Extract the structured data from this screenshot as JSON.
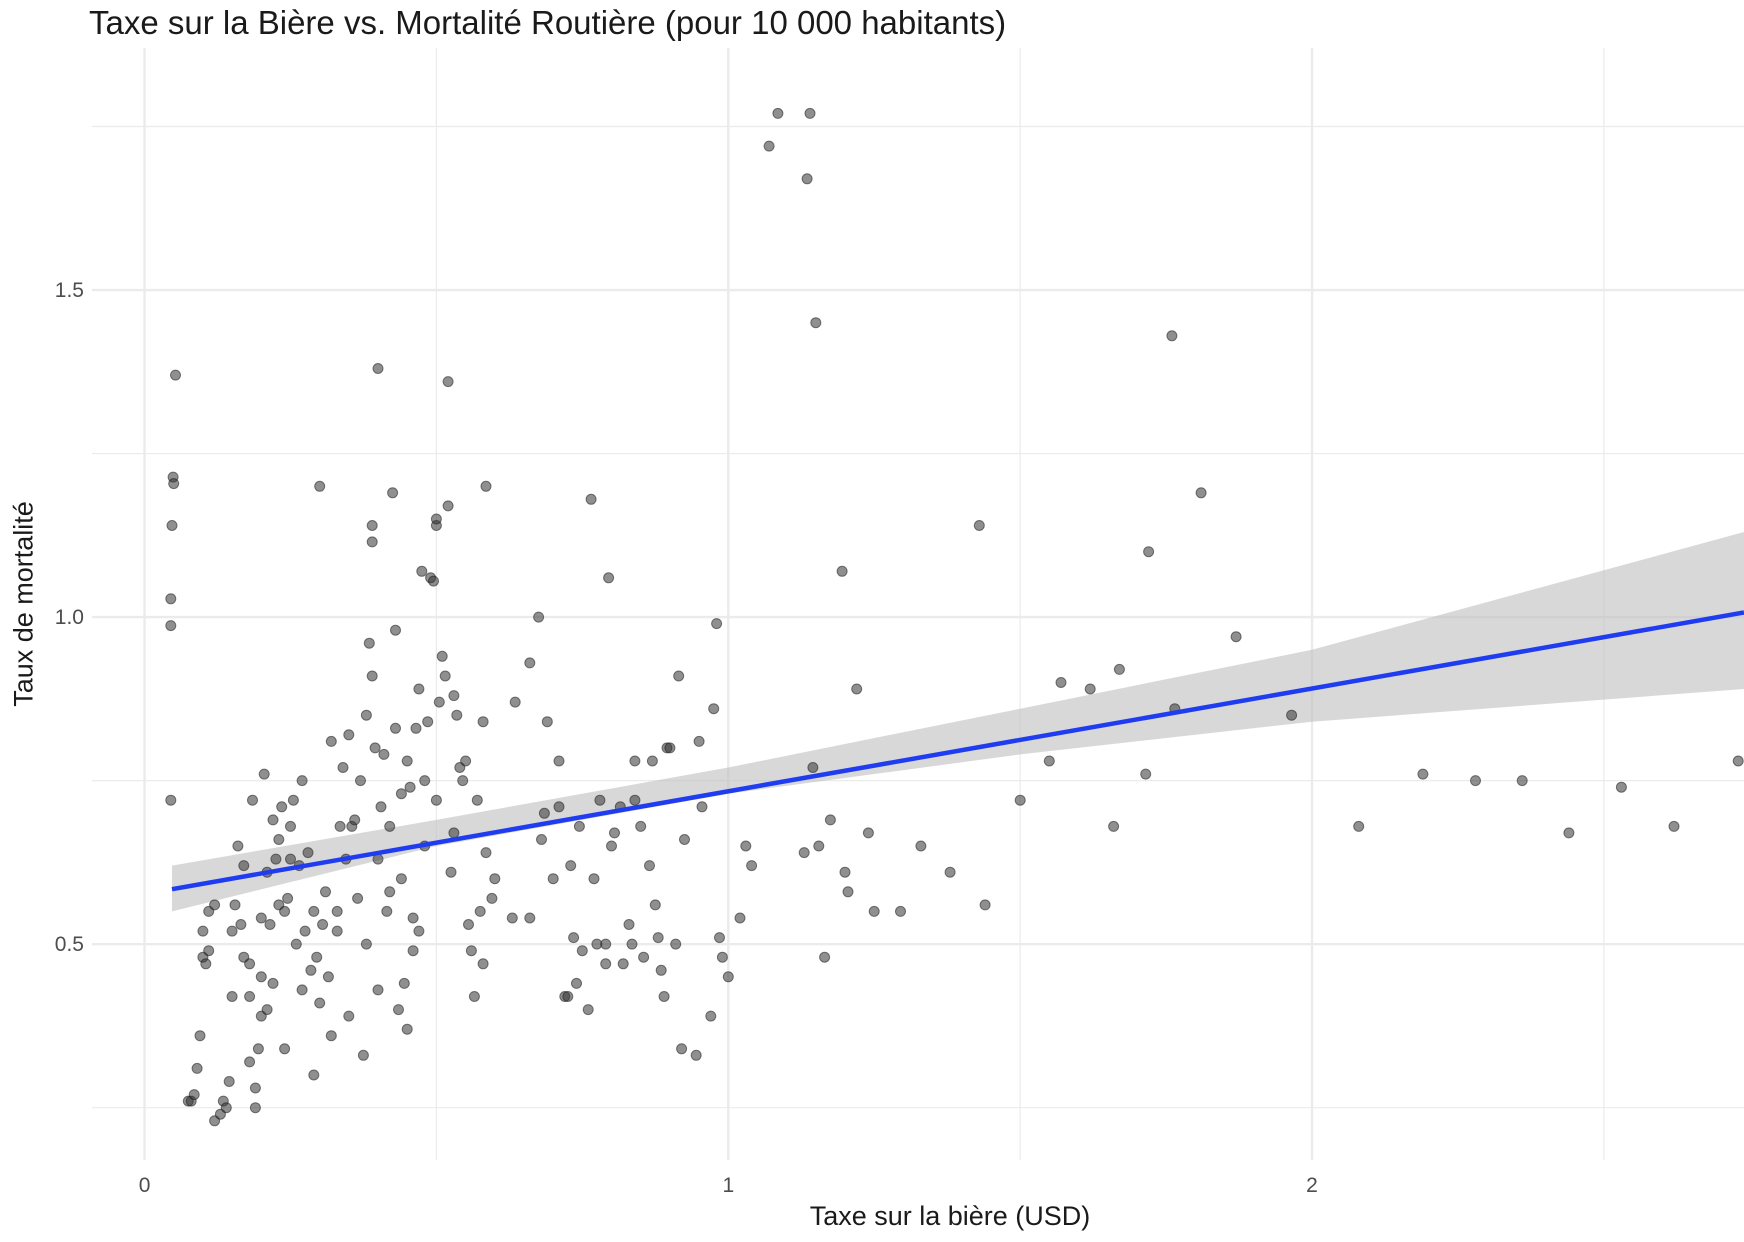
{
  "chart_data": {
    "type": "scatter",
    "title": "Taxe sur la Bière vs. Mortalité Routière (pour 10 000 habitants)",
    "xlabel": "Taxe sur la bière (USD)",
    "ylabel": "Taux de mortalité",
    "xlim": [
      -0.09,
      2.74
    ],
    "ylim": [
      0.17,
      1.87
    ],
    "x_ticks": [
      0,
      1,
      2
    ],
    "x_tick_labels": [
      "0",
      "1",
      "2"
    ],
    "y_ticks": [
      0.5,
      1.0,
      1.5
    ],
    "y_tick_labels": [
      "0.5",
      "1.0",
      "1.5"
    ],
    "grid": true,
    "colors": {
      "points": "#333333",
      "fit_line": "#1f3cf0",
      "confidence_band": "#bebebe",
      "grid": "#ebebeb"
    },
    "regression": {
      "x": [
        0.047,
        2.74
      ],
      "y": [
        0.584,
        1.007
      ]
    },
    "confidence_band": {
      "x": [
        0.047,
        0.5,
        1.0,
        1.5,
        2.0,
        2.74
      ],
      "lower": [
        0.55,
        0.65,
        0.73,
        0.79,
        0.84,
        0.89
      ],
      "upper": [
        0.62,
        0.69,
        0.77,
        0.86,
        0.95,
        1.13
      ]
    },
    "points": [
      {
        "x": 0.045,
        "y": 0.987
      },
      {
        "x": 0.045,
        "y": 1.028
      },
      {
        "x": 0.047,
        "y": 1.14
      },
      {
        "x": 0.049,
        "y": 1.214
      },
      {
        "x": 0.05,
        "y": 1.204
      },
      {
        "x": 0.053,
        "y": 1.37
      },
      {
        "x": 0.045,
        "y": 0.72
      },
      {
        "x": 0.075,
        "y": 0.26
      },
      {
        "x": 0.08,
        "y": 0.26
      },
      {
        "x": 0.085,
        "y": 0.27
      },
      {
        "x": 0.09,
        "y": 0.31
      },
      {
        "x": 0.095,
        "y": 0.36
      },
      {
        "x": 0.1,
        "y": 0.48
      },
      {
        "x": 0.1,
        "y": 0.52
      },
      {
        "x": 0.105,
        "y": 0.47
      },
      {
        "x": 0.11,
        "y": 0.49
      },
      {
        "x": 0.11,
        "y": 0.55
      },
      {
        "x": 0.12,
        "y": 0.56
      },
      {
        "x": 0.12,
        "y": 0.23
      },
      {
        "x": 0.13,
        "y": 0.24
      },
      {
        "x": 0.135,
        "y": 0.26
      },
      {
        "x": 0.14,
        "y": 0.25
      },
      {
        "x": 0.145,
        "y": 0.29
      },
      {
        "x": 0.15,
        "y": 0.42
      },
      {
        "x": 0.15,
        "y": 0.52
      },
      {
        "x": 0.155,
        "y": 0.56
      },
      {
        "x": 0.16,
        "y": 0.65
      },
      {
        "x": 0.165,
        "y": 0.53
      },
      {
        "x": 0.17,
        "y": 0.48
      },
      {
        "x": 0.17,
        "y": 0.62
      },
      {
        "x": 0.18,
        "y": 0.42
      },
      {
        "x": 0.18,
        "y": 0.47
      },
      {
        "x": 0.18,
        "y": 0.32
      },
      {
        "x": 0.185,
        "y": 0.72
      },
      {
        "x": 0.19,
        "y": 0.25
      },
      {
        "x": 0.19,
        "y": 0.28
      },
      {
        "x": 0.195,
        "y": 0.34
      },
      {
        "x": 0.2,
        "y": 0.39
      },
      {
        "x": 0.2,
        "y": 0.45
      },
      {
        "x": 0.2,
        "y": 0.54
      },
      {
        "x": 0.205,
        "y": 0.76
      },
      {
        "x": 0.21,
        "y": 0.61
      },
      {
        "x": 0.21,
        "y": 0.4
      },
      {
        "x": 0.215,
        "y": 0.53
      },
      {
        "x": 0.22,
        "y": 0.44
      },
      {
        "x": 0.22,
        "y": 0.69
      },
      {
        "x": 0.225,
        "y": 0.63
      },
      {
        "x": 0.23,
        "y": 0.56
      },
      {
        "x": 0.23,
        "y": 0.66
      },
      {
        "x": 0.235,
        "y": 0.71
      },
      {
        "x": 0.24,
        "y": 0.55
      },
      {
        "x": 0.24,
        "y": 0.34
      },
      {
        "x": 0.245,
        "y": 0.57
      },
      {
        "x": 0.25,
        "y": 0.63
      },
      {
        "x": 0.25,
        "y": 0.68
      },
      {
        "x": 0.255,
        "y": 0.72
      },
      {
        "x": 0.26,
        "y": 0.5
      },
      {
        "x": 0.265,
        "y": 0.62
      },
      {
        "x": 0.27,
        "y": 0.43
      },
      {
        "x": 0.27,
        "y": 0.75
      },
      {
        "x": 0.275,
        "y": 0.52
      },
      {
        "x": 0.28,
        "y": 0.64
      },
      {
        "x": 0.285,
        "y": 0.46
      },
      {
        "x": 0.29,
        "y": 0.55
      },
      {
        "x": 0.29,
        "y": 0.3
      },
      {
        "x": 0.295,
        "y": 0.48
      },
      {
        "x": 0.3,
        "y": 0.41
      },
      {
        "x": 0.3,
        "y": 1.2
      },
      {
        "x": 0.305,
        "y": 0.53
      },
      {
        "x": 0.31,
        "y": 0.58
      },
      {
        "x": 0.315,
        "y": 0.45
      },
      {
        "x": 0.32,
        "y": 0.36
      },
      {
        "x": 0.32,
        "y": 0.81
      },
      {
        "x": 0.33,
        "y": 0.52
      },
      {
        "x": 0.33,
        "y": 0.55
      },
      {
        "x": 0.335,
        "y": 0.68
      },
      {
        "x": 0.34,
        "y": 0.77
      },
      {
        "x": 0.345,
        "y": 0.63
      },
      {
        "x": 0.35,
        "y": 0.82
      },
      {
        "x": 0.35,
        "y": 0.39
      },
      {
        "x": 0.355,
        "y": 0.68
      },
      {
        "x": 0.36,
        "y": 0.69
      },
      {
        "x": 0.365,
        "y": 0.57
      },
      {
        "x": 0.37,
        "y": 0.75
      },
      {
        "x": 0.375,
        "y": 0.33
      },
      {
        "x": 0.38,
        "y": 0.5
      },
      {
        "x": 0.38,
        "y": 0.85
      },
      {
        "x": 0.385,
        "y": 0.96
      },
      {
        "x": 0.39,
        "y": 0.91
      },
      {
        "x": 0.39,
        "y": 1.14
      },
      {
        "x": 0.39,
        "y": 1.115
      },
      {
        "x": 0.395,
        "y": 0.8
      },
      {
        "x": 0.4,
        "y": 0.63
      },
      {
        "x": 0.4,
        "y": 0.43
      },
      {
        "x": 0.4,
        "y": 1.38
      },
      {
        "x": 0.405,
        "y": 0.71
      },
      {
        "x": 0.41,
        "y": 0.79
      },
      {
        "x": 0.415,
        "y": 0.55
      },
      {
        "x": 0.42,
        "y": 0.58
      },
      {
        "x": 0.42,
        "y": 0.68
      },
      {
        "x": 0.425,
        "y": 1.19
      },
      {
        "x": 0.43,
        "y": 0.83
      },
      {
        "x": 0.43,
        "y": 0.98
      },
      {
        "x": 0.435,
        "y": 0.4
      },
      {
        "x": 0.44,
        "y": 0.73
      },
      {
        "x": 0.44,
        "y": 0.6
      },
      {
        "x": 0.445,
        "y": 0.44
      },
      {
        "x": 0.45,
        "y": 0.78
      },
      {
        "x": 0.45,
        "y": 0.37
      },
      {
        "x": 0.455,
        "y": 0.74
      },
      {
        "x": 0.46,
        "y": 0.54
      },
      {
        "x": 0.46,
        "y": 0.49
      },
      {
        "x": 0.465,
        "y": 0.83
      },
      {
        "x": 0.47,
        "y": 0.52
      },
      {
        "x": 0.47,
        "y": 0.89
      },
      {
        "x": 0.475,
        "y": 1.07
      },
      {
        "x": 0.48,
        "y": 0.65
      },
      {
        "x": 0.48,
        "y": 0.75
      },
      {
        "x": 0.485,
        "y": 0.84
      },
      {
        "x": 0.49,
        "y": 1.06
      },
      {
        "x": 0.495,
        "y": 1.055
      },
      {
        "x": 0.5,
        "y": 1.14
      },
      {
        "x": 0.5,
        "y": 1.15
      },
      {
        "x": 0.5,
        "y": 0.72
      },
      {
        "x": 0.505,
        "y": 0.87
      },
      {
        "x": 0.51,
        "y": 0.94
      },
      {
        "x": 0.515,
        "y": 0.91
      },
      {
        "x": 0.52,
        "y": 1.17
      },
      {
        "x": 0.52,
        "y": 1.36
      },
      {
        "x": 0.525,
        "y": 0.61
      },
      {
        "x": 0.53,
        "y": 0.67
      },
      {
        "x": 0.53,
        "y": 0.88
      },
      {
        "x": 0.535,
        "y": 0.85
      },
      {
        "x": 0.54,
        "y": 0.77
      },
      {
        "x": 0.545,
        "y": 0.75
      },
      {
        "x": 0.55,
        "y": 0.78
      },
      {
        "x": 0.555,
        "y": 0.53
      },
      {
        "x": 0.56,
        "y": 0.49
      },
      {
        "x": 0.565,
        "y": 0.42
      },
      {
        "x": 0.57,
        "y": 0.72
      },
      {
        "x": 0.575,
        "y": 0.55
      },
      {
        "x": 0.58,
        "y": 0.84
      },
      {
        "x": 0.58,
        "y": 0.47
      },
      {
        "x": 0.585,
        "y": 1.2
      },
      {
        "x": 0.585,
        "y": 0.64
      },
      {
        "x": 0.595,
        "y": 0.57
      },
      {
        "x": 0.6,
        "y": 0.6
      },
      {
        "x": 0.63,
        "y": 0.54
      },
      {
        "x": 0.635,
        "y": 0.87
      },
      {
        "x": 0.66,
        "y": 0.93
      },
      {
        "x": 0.66,
        "y": 0.54
      },
      {
        "x": 0.675,
        "y": 1.0
      },
      {
        "x": 0.68,
        "y": 0.66
      },
      {
        "x": 0.685,
        "y": 0.7
      },
      {
        "x": 0.69,
        "y": 0.84
      },
      {
        "x": 0.7,
        "y": 0.6
      },
      {
        "x": 0.71,
        "y": 0.71
      },
      {
        "x": 0.71,
        "y": 0.78
      },
      {
        "x": 0.72,
        "y": 0.42
      },
      {
        "x": 0.725,
        "y": 0.42
      },
      {
        "x": 0.73,
        "y": 0.62
      },
      {
        "x": 0.735,
        "y": 0.51
      },
      {
        "x": 0.74,
        "y": 0.44
      },
      {
        "x": 0.745,
        "y": 0.68
      },
      {
        "x": 0.75,
        "y": 0.49
      },
      {
        "x": 0.76,
        "y": 0.4
      },
      {
        "x": 0.765,
        "y": 1.18
      },
      {
        "x": 0.77,
        "y": 0.6
      },
      {
        "x": 0.775,
        "y": 0.5
      },
      {
        "x": 0.78,
        "y": 0.72
      },
      {
        "x": 0.79,
        "y": 0.5
      },
      {
        "x": 0.79,
        "y": 0.47
      },
      {
        "x": 0.795,
        "y": 1.06
      },
      {
        "x": 0.8,
        "y": 0.65
      },
      {
        "x": 0.805,
        "y": 0.67
      },
      {
        "x": 0.815,
        "y": 0.71
      },
      {
        "x": 0.82,
        "y": 0.47
      },
      {
        "x": 0.83,
        "y": 0.53
      },
      {
        "x": 0.835,
        "y": 0.5
      },
      {
        "x": 0.84,
        "y": 0.72
      },
      {
        "x": 0.84,
        "y": 0.78
      },
      {
        "x": 0.85,
        "y": 0.68
      },
      {
        "x": 0.855,
        "y": 0.48
      },
      {
        "x": 0.865,
        "y": 0.62
      },
      {
        "x": 0.87,
        "y": 0.78
      },
      {
        "x": 0.875,
        "y": 0.56
      },
      {
        "x": 0.88,
        "y": 0.51
      },
      {
        "x": 0.885,
        "y": 0.46
      },
      {
        "x": 0.89,
        "y": 0.42
      },
      {
        "x": 0.895,
        "y": 0.8
      },
      {
        "x": 0.9,
        "y": 0.8
      },
      {
        "x": 0.91,
        "y": 0.5
      },
      {
        "x": 0.915,
        "y": 0.91
      },
      {
        "x": 0.92,
        "y": 0.34
      },
      {
        "x": 0.925,
        "y": 0.66
      },
      {
        "x": 0.945,
        "y": 0.33
      },
      {
        "x": 0.95,
        "y": 0.81
      },
      {
        "x": 0.955,
        "y": 0.71
      },
      {
        "x": 0.97,
        "y": 0.39
      },
      {
        "x": 0.975,
        "y": 0.86
      },
      {
        "x": 0.98,
        "y": 0.99
      },
      {
        "x": 0.985,
        "y": 0.51
      },
      {
        "x": 0.99,
        "y": 0.48
      },
      {
        "x": 1.0,
        "y": 0.45
      },
      {
        "x": 1.02,
        "y": 0.54
      },
      {
        "x": 1.03,
        "y": 0.65
      },
      {
        "x": 1.04,
        "y": 0.62
      },
      {
        "x": 1.07,
        "y": 1.72
      },
      {
        "x": 1.085,
        "y": 1.77
      },
      {
        "x": 1.13,
        "y": 0.64
      },
      {
        "x": 1.135,
        "y": 1.67
      },
      {
        "x": 1.14,
        "y": 1.77
      },
      {
        "x": 1.145,
        "y": 0.77
      },
      {
        "x": 1.15,
        "y": 1.45
      },
      {
        "x": 1.155,
        "y": 0.65
      },
      {
        "x": 1.165,
        "y": 0.48
      },
      {
        "x": 1.175,
        "y": 0.69
      },
      {
        "x": 1.195,
        "y": 1.07
      },
      {
        "x": 1.2,
        "y": 0.61
      },
      {
        "x": 1.205,
        "y": 0.58
      },
      {
        "x": 1.22,
        "y": 0.89
      },
      {
        "x": 1.24,
        "y": 0.67
      },
      {
        "x": 1.25,
        "y": 0.55
      },
      {
        "x": 1.295,
        "y": 0.55
      },
      {
        "x": 1.33,
        "y": 0.65
      },
      {
        "x": 1.38,
        "y": 0.61
      },
      {
        "x": 1.44,
        "y": 0.56
      },
      {
        "x": 1.43,
        "y": 1.14
      },
      {
        "x": 1.5,
        "y": 0.72
      },
      {
        "x": 1.55,
        "y": 0.78
      },
      {
        "x": 1.57,
        "y": 0.9
      },
      {
        "x": 1.62,
        "y": 0.89
      },
      {
        "x": 1.66,
        "y": 0.68
      },
      {
        "x": 1.67,
        "y": 0.92
      },
      {
        "x": 1.715,
        "y": 0.76
      },
      {
        "x": 1.72,
        "y": 1.1
      },
      {
        "x": 1.76,
        "y": 1.43
      },
      {
        "x": 1.765,
        "y": 0.86
      },
      {
        "x": 1.81,
        "y": 1.19
      },
      {
        "x": 1.87,
        "y": 0.97
      },
      {
        "x": 1.965,
        "y": 0.85
      },
      {
        "x": 2.08,
        "y": 0.68
      },
      {
        "x": 2.19,
        "y": 0.76
      },
      {
        "x": 2.28,
        "y": 0.75
      },
      {
        "x": 2.36,
        "y": 0.75
      },
      {
        "x": 2.44,
        "y": 0.67
      },
      {
        "x": 2.53,
        "y": 0.74
      },
      {
        "x": 2.62,
        "y": 0.68
      },
      {
        "x": 2.73,
        "y": 0.78
      }
    ]
  }
}
